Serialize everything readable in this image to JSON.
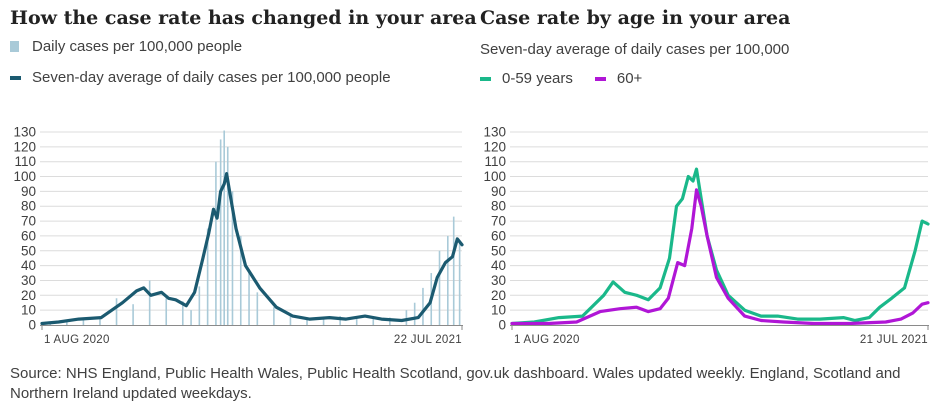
{
  "left_panel": {
    "title": "How the case rate has changed in your area",
    "legend": {
      "daily": "Daily cases per 100,000 people",
      "average": "Seven-day average of daily cases per 100,000 people"
    }
  },
  "right_panel": {
    "title": "Case rate by age in your area",
    "subtitle": "Seven-day average of daily cases per 100,000",
    "legend": {
      "young": "0-59 years",
      "old": "60+"
    }
  },
  "sources": "Source: NHS England, Public Health Wales, Public Health Scotland, gov.uk dashboard. Wales updated weekly. England, Scotland and Northern Ireland updated weekdays.",
  "colors": {
    "bars": "#a9cad8",
    "average": "#1b5a70",
    "young": "#1ab88a",
    "old": "#b016d6",
    "grid": "#dcdcdc",
    "axis": "#8a8a8a"
  },
  "chart_data": [
    {
      "type": "bar",
      "title": "How the case rate has changed in your area",
      "x_start_label": "1 AUG 2020",
      "x_end_label": "22 JUL 2021",
      "x_range": [
        "2020-08-01",
        "2021-07-22"
      ],
      "ylim": [
        0,
        130
      ],
      "y_ticks": [
        0,
        10,
        20,
        30,
        40,
        50,
        60,
        70,
        80,
        90,
        100,
        110,
        120,
        130
      ],
      "grid": true,
      "series": [
        {
          "name": "Daily cases per 100,000 people",
          "kind": "bar",
          "x": [
            "2020-08-08",
            "2020-08-22",
            "2020-09-05",
            "2020-09-19",
            "2020-10-03",
            "2020-10-17",
            "2020-10-31",
            "2020-11-14",
            "2020-11-28",
            "2020-12-05",
            "2020-12-12",
            "2020-12-19",
            "2020-12-26",
            "2020-12-30",
            "2021-01-02",
            "2021-01-05",
            "2021-01-09",
            "2021-01-16",
            "2021-01-23",
            "2021-01-30",
            "2021-02-13",
            "2021-02-27",
            "2021-03-13",
            "2021-03-27",
            "2021-04-10",
            "2021-04-24",
            "2021-05-08",
            "2021-05-22",
            "2021-06-05",
            "2021-06-12",
            "2021-06-19",
            "2021-06-26",
            "2021-07-03",
            "2021-07-10",
            "2021-07-15",
            "2021-07-20"
          ],
          "y": [
            2,
            3,
            4,
            6,
            18,
            14,
            30,
            18,
            16,
            10,
            26,
            65,
            110,
            125,
            131,
            120,
            90,
            60,
            35,
            22,
            12,
            6,
            5,
            5,
            6,
            4,
            4,
            5,
            10,
            15,
            25,
            35,
            50,
            60,
            73,
            55
          ]
        },
        {
          "name": "Seven-day average of daily cases per 100,000 people",
          "kind": "line",
          "x": [
            "2020-08-01",
            "2020-08-15",
            "2020-09-01",
            "2020-09-20",
            "2020-10-08",
            "2020-10-20",
            "2020-10-26",
            "2020-11-01",
            "2020-11-10",
            "2020-11-16",
            "2020-11-22",
            "2020-12-01",
            "2020-12-08",
            "2020-12-15",
            "2020-12-20",
            "2020-12-24",
            "2020-12-27",
            "2020-12-30",
            "2021-01-02",
            "2021-01-04",
            "2021-01-07",
            "2021-01-12",
            "2021-01-20",
            "2021-02-01",
            "2021-02-15",
            "2021-03-01",
            "2021-03-15",
            "2021-04-01",
            "2021-04-15",
            "2021-05-01",
            "2021-05-15",
            "2021-06-01",
            "2021-06-15",
            "2021-06-25",
            "2021-07-01",
            "2021-07-08",
            "2021-07-14",
            "2021-07-18",
            "2021-07-22"
          ],
          "y": [
            1,
            2,
            4,
            5,
            15,
            23,
            25,
            20,
            22,
            18,
            17,
            13,
            22,
            45,
            62,
            78,
            72,
            90,
            95,
            102,
            88,
            65,
            40,
            25,
            12,
            6,
            4,
            5,
            4,
            6,
            4,
            3,
            5,
            15,
            32,
            42,
            46,
            58,
            54
          ]
        }
      ]
    },
    {
      "type": "line",
      "title": "Case rate by age in your area",
      "subtitle": "Seven-day average of daily cases per 100,000",
      "x_start_label": "1 AUG 2020",
      "x_end_label": "21 JUL 2021",
      "x_range": [
        "2020-08-01",
        "2021-07-21"
      ],
      "ylim": [
        0,
        130
      ],
      "y_ticks": [
        0,
        10,
        20,
        30,
        40,
        50,
        60,
        70,
        80,
        90,
        100,
        110,
        120,
        130
      ],
      "grid": true,
      "series": [
        {
          "name": "0-59 years",
          "x": [
            "2020-08-01",
            "2020-08-20",
            "2020-09-10",
            "2020-09-30",
            "2020-10-18",
            "2020-10-26",
            "2020-11-05",
            "2020-11-15",
            "2020-11-25",
            "2020-12-05",
            "2020-12-13",
            "2020-12-19",
            "2020-12-24",
            "2020-12-29",
            "2021-01-02",
            "2021-01-05",
            "2021-01-09",
            "2021-01-14",
            "2021-01-22",
            "2021-02-01",
            "2021-02-15",
            "2021-03-01",
            "2021-03-15",
            "2021-04-01",
            "2021-04-20",
            "2021-05-10",
            "2021-05-20",
            "2021-06-01",
            "2021-06-10",
            "2021-06-20",
            "2021-07-01",
            "2021-07-10",
            "2021-07-16",
            "2021-07-21"
          ],
          "y": [
            1,
            2,
            5,
            6,
            20,
            29,
            22,
            20,
            17,
            25,
            45,
            80,
            85,
            100,
            97,
            105,
            85,
            60,
            37,
            20,
            10,
            6,
            6,
            4,
            4,
            5,
            3,
            5,
            12,
            18,
            25,
            50,
            70,
            68
          ]
        },
        {
          "name": "60+",
          "x": [
            "2020-08-01",
            "2020-09-01",
            "2020-09-25",
            "2020-10-15",
            "2020-11-01",
            "2020-11-15",
            "2020-11-25",
            "2020-12-05",
            "2020-12-12",
            "2020-12-20",
            "2020-12-26",
            "2021-01-01",
            "2021-01-05",
            "2021-01-09",
            "2021-01-14",
            "2021-01-22",
            "2021-02-01",
            "2021-02-15",
            "2021-03-01",
            "2021-03-20",
            "2021-04-15",
            "2021-05-15",
            "2021-06-15",
            "2021-06-28",
            "2021-07-08",
            "2021-07-16",
            "2021-07-21"
          ],
          "y": [
            1,
            1,
            2,
            9,
            11,
            12,
            9,
            11,
            18,
            42,
            40,
            65,
            91,
            80,
            60,
            32,
            18,
            6,
            3,
            2,
            1,
            1,
            2,
            4,
            8,
            14,
            15
          ]
        }
      ]
    }
  ]
}
